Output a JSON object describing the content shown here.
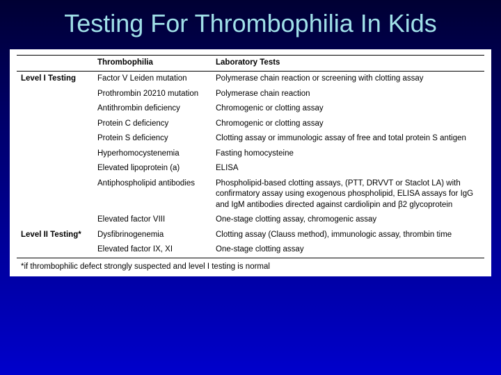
{
  "title": "Testing For Thrombophilia In Kids",
  "columns": {
    "c0": "",
    "c1": "Thrombophilia",
    "c2": "Laboratory Tests"
  },
  "rows": [
    {
      "level": "Level I Testing",
      "thromb": "Factor V Leiden mutation",
      "lab": "Polymerase chain reaction or screening with clotting assay"
    },
    {
      "level": "",
      "thromb": "Prothrombin 20210 mutation",
      "lab": "Polymerase chain reaction"
    },
    {
      "level": "",
      "thromb": "Antithrombin deficiency",
      "lab": "Chromogenic or clotting assay"
    },
    {
      "level": "",
      "thromb": "Protein C deficiency",
      "lab": "Chromogenic or clotting assay"
    },
    {
      "level": "",
      "thromb": "Protein S deficiency",
      "lab": "Clotting assay or immunologic assay of free and total protein S antigen"
    },
    {
      "level": "",
      "thromb": "Hyperhomocystenemia",
      "lab": "Fasting homocysteine"
    },
    {
      "level": "",
      "thromb": "Elevated lipoprotein (a)",
      "lab": "ELISA"
    },
    {
      "level": "",
      "thromb": "Antiphospholipid antibodies",
      "lab": "Phospholipid-based clotting assays, (PTT, DRVVT or Staclot LA) with confirmatory assay using exogenous phospholipid, ELISA assays for IgG and IgM antibodies directed against cardiolipin and β2 glycoprotein"
    },
    {
      "level": "",
      "thromb": "Elevated factor VIII",
      "lab": "One-stage clotting assay, chromogenic assay"
    },
    {
      "level": "Level II Testing*",
      "thromb": "Dysfibrinogenemia",
      "lab": "Clotting assay (Clauss method), immunologic assay, thrombin time"
    },
    {
      "level": "",
      "thromb": "Elevated factor IX, XI",
      "lab": "One-stage clotting assay"
    }
  ],
  "footnote": "*if thrombophilic defect strongly suspected and level I testing is normal"
}
